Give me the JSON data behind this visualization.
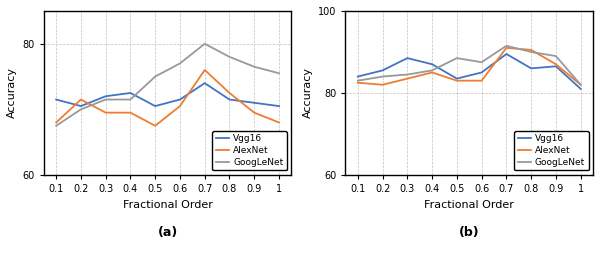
{
  "x": [
    0.1,
    0.2,
    0.3,
    0.4,
    0.5,
    0.6,
    0.7,
    0.8,
    0.9,
    1.0
  ],
  "panel_a": {
    "vgg16": [
      71.5,
      70.5,
      72.0,
      72.5,
      70.5,
      71.5,
      74.0,
      71.5,
      71.0,
      70.5
    ],
    "alexnet": [
      68.0,
      71.5,
      69.5,
      69.5,
      67.5,
      70.5,
      76.0,
      72.5,
      69.5,
      68.0
    ],
    "googlenet": [
      67.5,
      70.0,
      71.5,
      71.5,
      75.0,
      77.0,
      80.0,
      78.0,
      76.5,
      75.5
    ]
  },
  "panel_b": {
    "vgg16": [
      84.0,
      85.5,
      88.5,
      87.0,
      83.5,
      85.0,
      89.5,
      86.0,
      86.5,
      81.0
    ],
    "alexnet": [
      82.5,
      82.0,
      83.5,
      85.0,
      83.0,
      83.0,
      91.0,
      90.5,
      87.0,
      82.0
    ],
    "googlenet": [
      83.0,
      84.0,
      84.5,
      85.5,
      88.5,
      87.5,
      91.5,
      90.0,
      89.0,
      82.0
    ]
  },
  "colors": {
    "vgg16": "#4472C4",
    "alexnet": "#ED7D31",
    "googlenet": "#999999"
  },
  "ylim_a": [
    60,
    85
  ],
  "ylim_b": [
    60,
    100
  ],
  "yticks_a": [
    60,
    80
  ],
  "yticks_b": [
    60,
    80,
    100
  ],
  "xlabel": "Fractional Order",
  "ylabel": "Accuracy",
  "label_a": "(a)",
  "label_b": "(b)",
  "xtick_labels": [
    "0.1",
    "0.2",
    "0.3",
    "0.4",
    "0.5",
    "0.6",
    "0.7",
    "0.8",
    "0.9",
    "1"
  ],
  "legend_labels": [
    "Vgg16",
    "AlexNet",
    "GoogLeNet"
  ]
}
